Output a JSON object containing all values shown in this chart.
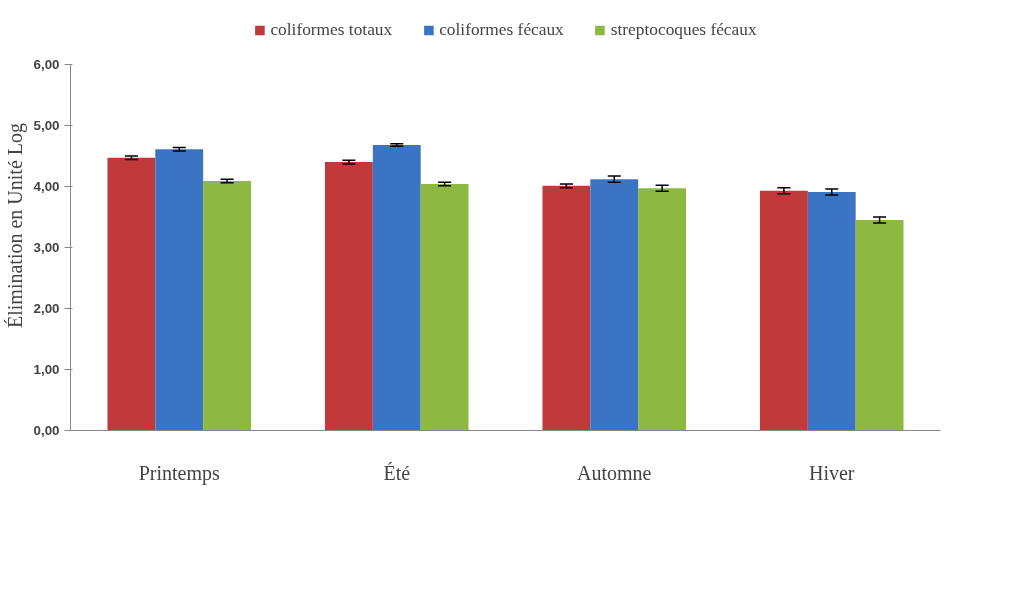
{
  "chart_data": {
    "type": "bar",
    "ylabel": "Élimination en Unité Log",
    "categories": [
      "Printemps",
      "Été",
      "Automne",
      "Hiver"
    ],
    "series": [
      {
        "name": "coliformes totaux",
        "color": "#c0393b",
        "values": [
          4.47,
          4.4,
          4.01,
          3.93
        ],
        "errors": [
          0.03,
          0.03,
          0.03,
          0.05
        ]
      },
      {
        "name": "coliformes fécaux",
        "color": "#3c74c4",
        "values": [
          4.61,
          4.68,
          4.12,
          3.91
        ],
        "errors": [
          0.03,
          0.02,
          0.05,
          0.05
        ]
      },
      {
        "name": "streptocoques fécaux",
        "color": "#8db842",
        "values": [
          4.09,
          4.04,
          3.97,
          3.45
        ],
        "errors": [
          0.03,
          0.03,
          0.05,
          0.05
        ]
      }
    ],
    "ylim": [
      0,
      6
    ],
    "yticks": [
      {
        "value": 0,
        "label": "0,00"
      },
      {
        "value": 1,
        "label": "1,00"
      },
      {
        "value": 2,
        "label": "2,00"
      },
      {
        "value": 3,
        "label": "3,00"
      },
      {
        "value": 4,
        "label": "4,00"
      },
      {
        "value": 5,
        "label": "5,00"
      },
      {
        "value": 6,
        "label": "6,00"
      }
    ],
    "grid": false,
    "legend": "top"
  }
}
